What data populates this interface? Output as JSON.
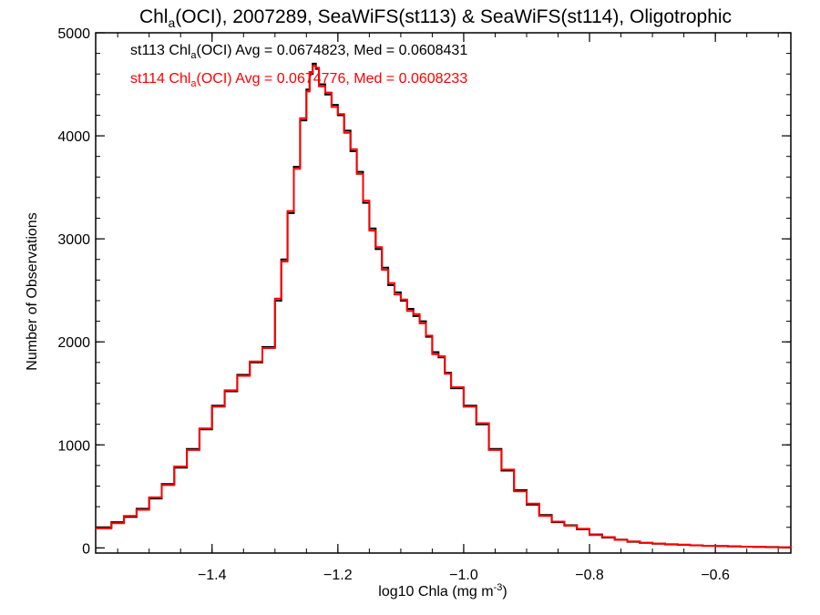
{
  "chart_data": {
    "type": "histogram-step",
    "title": {
      "pre": "Chl",
      "sub": "a",
      "post": "(OCI), 2007289, SeaWiFS(st113) & SeaWiFS(st114), Oligotrophic"
    },
    "xlabel": {
      "pre": "log10 Chla (mg m",
      "sup": "-3",
      "post": ")"
    },
    "ylabel": "Number of Observations",
    "xlim": [
      -1.585,
      -0.48
    ],
    "ylim": [
      -50,
      5000
    ],
    "x_ticks": [
      -1.4,
      -1.2,
      -1.0,
      -0.8,
      -0.6
    ],
    "x_tick_labels": [
      "−1.4",
      "−1.2",
      "−1.0",
      "−0.8",
      "−0.6"
    ],
    "x_minor_step": 0.05,
    "y_ticks": [
      0,
      1000,
      2000,
      3000,
      4000,
      5000
    ],
    "y_tick_labels": [
      "0",
      "1000",
      "2000",
      "3000",
      "4000",
      "5000"
    ],
    "y_minor_step": 200,
    "legend_position": "top-left",
    "legend": [
      {
        "pre": "st113 Chl",
        "sub": "a",
        "post": "(OCI) Avg = 0.0674823, Med = 0.0608431",
        "color": "#000000"
      },
      {
        "pre": "st114 Chl",
        "sub": "a",
        "post": "(OCI) Avg = 0.0674776, Med = 0.0608233",
        "color": "#ff0000"
      }
    ],
    "series": [
      {
        "name": "st113",
        "color": "#000000",
        "x": [
          -1.585,
          -1.56,
          -1.54,
          -1.52,
          -1.5,
          -1.48,
          -1.46,
          -1.44,
          -1.42,
          -1.4,
          -1.38,
          -1.36,
          -1.34,
          -1.32,
          -1.3,
          -1.29,
          -1.28,
          -1.27,
          -1.26,
          -1.25,
          -1.245,
          -1.24,
          -1.235,
          -1.23,
          -1.22,
          -1.21,
          -1.2,
          -1.19,
          -1.18,
          -1.17,
          -1.16,
          -1.15,
          -1.14,
          -1.13,
          -1.12,
          -1.11,
          -1.1,
          -1.09,
          -1.08,
          -1.07,
          -1.06,
          -1.05,
          -1.04,
          -1.03,
          -1.02,
          -1.0,
          -0.98,
          -0.96,
          -0.94,
          -0.92,
          -0.9,
          -0.88,
          -0.86,
          -0.84,
          -0.82,
          -0.8,
          -0.78,
          -0.76,
          -0.74,
          -0.72,
          -0.7,
          -0.68,
          -0.66,
          -0.64,
          -0.62,
          -0.6,
          -0.58,
          -0.56,
          -0.54,
          -0.52,
          -0.5,
          -0.48
        ],
        "y": [
          200,
          250,
          300,
          380,
          480,
          620,
          780,
          960,
          1150,
          1380,
          1520,
          1680,
          1800,
          1950,
          2400,
          2800,
          3250,
          3700,
          4150,
          4450,
          4600,
          4700,
          4650,
          4500,
          4400,
          4300,
          4200,
          4050,
          3850,
          3650,
          3350,
          3100,
          2900,
          2720,
          2550,
          2480,
          2400,
          2320,
          2250,
          2200,
          2050,
          1900,
          1850,
          1700,
          1550,
          1380,
          1200,
          960,
          750,
          560,
          420,
          320,
          250,
          220,
          180,
          130,
          100,
          80,
          60,
          50,
          40,
          35,
          30,
          25,
          20,
          18,
          15,
          12,
          10,
          8,
          5,
          5
        ]
      },
      {
        "name": "st114",
        "color": "#ff0000",
        "x": [
          -1.585,
          -1.56,
          -1.54,
          -1.52,
          -1.5,
          -1.48,
          -1.46,
          -1.44,
          -1.42,
          -1.4,
          -1.38,
          -1.36,
          -1.34,
          -1.32,
          -1.3,
          -1.29,
          -1.28,
          -1.27,
          -1.26,
          -1.25,
          -1.245,
          -1.24,
          -1.235,
          -1.23,
          -1.22,
          -1.21,
          -1.2,
          -1.19,
          -1.18,
          -1.17,
          -1.16,
          -1.15,
          -1.14,
          -1.13,
          -1.12,
          -1.11,
          -1.1,
          -1.09,
          -1.08,
          -1.07,
          -1.06,
          -1.05,
          -1.04,
          -1.03,
          -1.02,
          -1.0,
          -0.98,
          -0.96,
          -0.94,
          -0.92,
          -0.9,
          -0.88,
          -0.86,
          -0.84,
          -0.82,
          -0.8,
          -0.78,
          -0.76,
          -0.74,
          -0.72,
          -0.7,
          -0.68,
          -0.66,
          -0.64,
          -0.62,
          -0.6,
          -0.58,
          -0.56,
          -0.54,
          -0.52,
          -0.5,
          -0.48
        ],
        "y": [
          190,
          240,
          310,
          370,
          490,
          610,
          790,
          950,
          1160,
          1370,
          1530,
          1670,
          1810,
          1940,
          2420,
          2780,
          3270,
          3680,
          4170,
          4430,
          4620,
          4680,
          4660,
          4480,
          4420,
          4280,
          4210,
          4030,
          3870,
          3630,
          3370,
          3080,
          2920,
          2700,
          2570,
          2460,
          2410,
          2300,
          2270,
          2180,
          2060,
          1880,
          1860,
          1690,
          1560,
          1370,
          1210,
          950,
          760,
          550,
          430,
          310,
          255,
          215,
          185,
          125,
          105,
          78,
          62,
          48,
          42,
          33,
          31,
          24,
          21,
          17,
          16,
          11,
          10,
          7,
          6,
          4
        ]
      }
    ]
  }
}
